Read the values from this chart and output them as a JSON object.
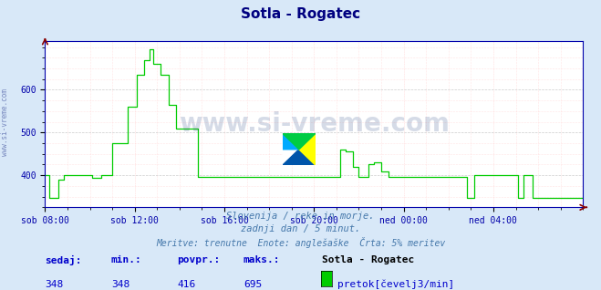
{
  "title": "Sotla - Rogatec",
  "bg_color": "#d8e8f8",
  "plot_bg_color": "#ffffff",
  "line_color": "#00cc00",
  "axis_color": "#0000aa",
  "grid_color_major": "#cccccc",
  "grid_color_minor": "#ffcccc",
  "xlabel_ticks": [
    "sob 08:00",
    "sob 12:00",
    "sob 16:00",
    "sob 20:00",
    "ned 00:00",
    "ned 04:00"
  ],
  "yticks": [
    400,
    500,
    600
  ],
  "ymin": 325,
  "ymax": 715,
  "caption_line1": "Slovenija / reke in morje.",
  "caption_line2": "zadnji dan / 5 minut.",
  "caption_line3": "Meritve: trenutne  Enote: anglešaške  Črta: 5% meritev",
  "footer_labels": [
    "sedaj:",
    "min.:",
    "povpr.:",
    "maks.:"
  ],
  "footer_values": [
    "348",
    "348",
    "416",
    "695"
  ],
  "footer_station": "Sotla - Rogatec",
  "footer_legend_color": "#00cc00",
  "footer_legend_label": "pretok[čevelj3/min]",
  "watermark": "www.si-vreme.com",
  "title_color": "#000080",
  "caption_color": "#4477aa",
  "footer_label_color": "#0000cc",
  "sidebar_text": "www.si-vreme.com",
  "sidebar_color": "#5566aa"
}
